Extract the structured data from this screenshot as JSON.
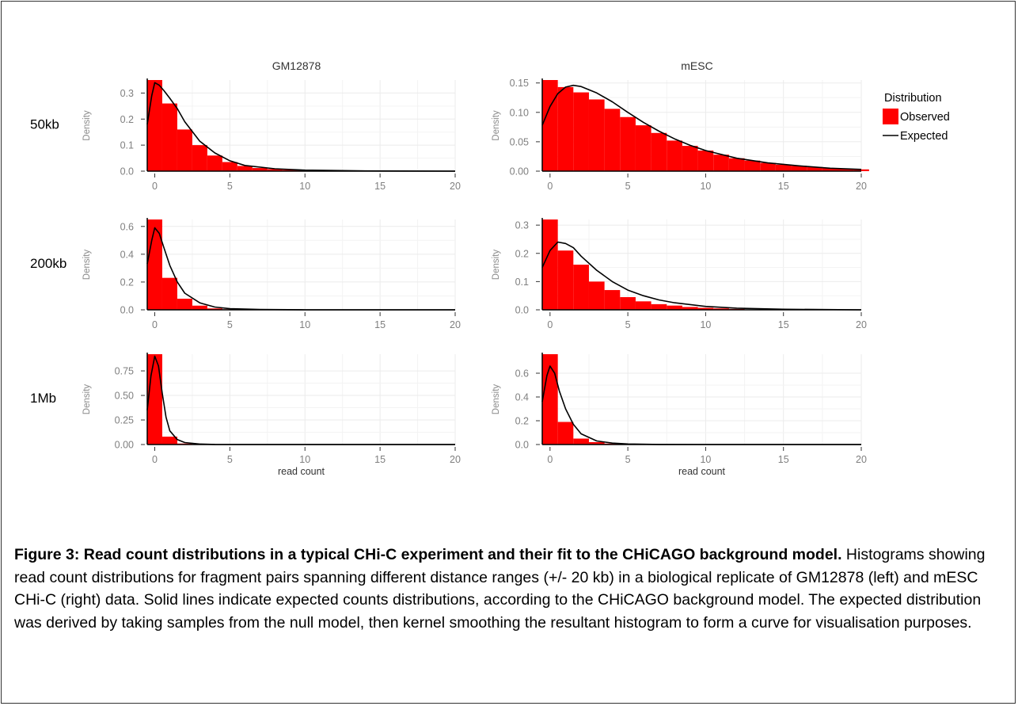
{
  "figure": {
    "caption_bold": "Figure 3: Read count distributions in a typical CHi-C experiment and their fit to the CHiCAGO background model.",
    "caption_rest": " Histograms showing read count distributions for fragment pairs spanning different distance ranges (+/- 20 kb) in a biological replicate of GM12878 (left) and mESC CHi-C (right) data. Solid lines indicate expected counts distributions, according to the CHiCAGO background model. The expected distribution was derived by taking samples from the null model, then kernel smoothing the resultant histogram to form a curve for visualisation purposes."
  },
  "colors": {
    "observed": "#ff0000",
    "expected": "#000000",
    "grid": "#ebebeb",
    "axis_text": "#7f7f7f"
  },
  "chart_data": [
    {
      "type": "bar",
      "panel": "GM12878 / 50kb",
      "column_label": "GM12878",
      "row_label": "50kb",
      "ylabel": "Density",
      "xlabel": "",
      "xlim": [
        -0.5,
        20
      ],
      "ylim": [
        0,
        0.35
      ],
      "xticks": [
        0,
        5,
        10,
        15,
        20
      ],
      "yticks": [
        0.0,
        0.1,
        0.2,
        0.3
      ],
      "ytick_labels": [
        "0.0",
        "0.1",
        "0.2",
        "0.3"
      ],
      "series": [
        {
          "name": "Observed",
          "type": "bar",
          "x": [
            0,
            1,
            2,
            3,
            4,
            5,
            6,
            7,
            8,
            9,
            10,
            11,
            12
          ],
          "values": [
            0.35,
            0.26,
            0.16,
            0.1,
            0.06,
            0.035,
            0.02,
            0.012,
            0.008,
            0.005,
            0.003,
            0.002,
            0.001
          ]
        },
        {
          "name": "Expected",
          "type": "line",
          "x": [
            -0.5,
            -0.2,
            0,
            0.3,
            0.6,
            1,
            1.5,
            2,
            3,
            4,
            5,
            6,
            8,
            10,
            14,
            20
          ],
          "values": [
            0.18,
            0.29,
            0.34,
            0.33,
            0.31,
            0.28,
            0.24,
            0.19,
            0.115,
            0.07,
            0.04,
            0.022,
            0.009,
            0.004,
            0.001,
            0.0
          ]
        }
      ]
    },
    {
      "type": "bar",
      "panel": "mESC / 50kb",
      "column_label": "mESC",
      "row_label": "50kb",
      "ylabel": "Density",
      "xlabel": "",
      "xlim": [
        -0.5,
        20
      ],
      "ylim": [
        0,
        0.155
      ],
      "xticks": [
        0,
        5,
        10,
        15,
        20
      ],
      "yticks": [
        0.0,
        0.05,
        0.1,
        0.15
      ],
      "ytick_labels": [
        "0.00",
        "0.05",
        "0.10",
        "0.15"
      ],
      "series": [
        {
          "name": "Observed",
          "type": "bar",
          "x": [
            0,
            1,
            2,
            3,
            4,
            5,
            6,
            7,
            8,
            9,
            10,
            11,
            12,
            13,
            14,
            15,
            16,
            17,
            18,
            19,
            20
          ],
          "values": [
            0.155,
            0.143,
            0.134,
            0.122,
            0.106,
            0.092,
            0.078,
            0.065,
            0.052,
            0.043,
            0.035,
            0.028,
            0.022,
            0.018,
            0.014,
            0.011,
            0.009,
            0.007,
            0.005,
            0.004,
            0.003
          ]
        },
        {
          "name": "Expected",
          "type": "line",
          "x": [
            -0.5,
            0,
            0.5,
            1,
            1.5,
            2,
            3,
            4,
            5,
            6,
            7,
            8,
            9,
            10,
            12,
            14,
            16,
            18,
            20
          ],
          "values": [
            0.078,
            0.11,
            0.132,
            0.143,
            0.146,
            0.144,
            0.133,
            0.118,
            0.1,
            0.083,
            0.068,
            0.055,
            0.044,
            0.035,
            0.022,
            0.014,
            0.009,
            0.005,
            0.003
          ]
        }
      ]
    },
    {
      "type": "bar",
      "panel": "GM12878 / 200kb",
      "column_label": "GM12878",
      "row_label": "200kb",
      "ylabel": "Density",
      "xlabel": "",
      "xlim": [
        -0.5,
        20
      ],
      "ylim": [
        0,
        0.65
      ],
      "xticks": [
        0,
        5,
        10,
        15,
        20
      ],
      "yticks": [
        0.0,
        0.2,
        0.4,
        0.6
      ],
      "ytick_labels": [
        "0.0",
        "0.2",
        "0.4",
        "0.6"
      ],
      "series": [
        {
          "name": "Observed",
          "type": "bar",
          "x": [
            0,
            1,
            2,
            3,
            4,
            5,
            6
          ],
          "values": [
            0.65,
            0.23,
            0.08,
            0.03,
            0.01,
            0.004,
            0.002
          ]
        },
        {
          "name": "Expected",
          "type": "line",
          "x": [
            -0.5,
            -0.2,
            0,
            0.3,
            0.6,
            1,
            1.5,
            2,
            3,
            4,
            5,
            7,
            10,
            20
          ],
          "values": [
            0.33,
            0.5,
            0.59,
            0.55,
            0.45,
            0.32,
            0.2,
            0.12,
            0.05,
            0.02,
            0.008,
            0.002,
            0.0,
            0.0
          ]
        }
      ]
    },
    {
      "type": "bar",
      "panel": "mESC / 200kb",
      "column_label": "mESC",
      "row_label": "200kb",
      "ylabel": "Density",
      "xlabel": "",
      "xlim": [
        -0.5,
        20
      ],
      "ylim": [
        0,
        0.32
      ],
      "xticks": [
        0,
        5,
        10,
        15,
        20
      ],
      "yticks": [
        0.0,
        0.1,
        0.2,
        0.3
      ],
      "ytick_labels": [
        "0.0",
        "0.1",
        "0.2",
        "0.3"
      ],
      "series": [
        {
          "name": "Observed",
          "type": "bar",
          "x": [
            0,
            1,
            2,
            3,
            4,
            5,
            6,
            7,
            8,
            9,
            10,
            11,
            12
          ],
          "values": [
            0.32,
            0.21,
            0.16,
            0.1,
            0.07,
            0.045,
            0.03,
            0.02,
            0.015,
            0.01,
            0.007,
            0.005,
            0.003
          ]
        },
        {
          "name": "Expected",
          "type": "line",
          "x": [
            -0.5,
            0,
            0.5,
            1,
            1.5,
            2,
            3,
            4,
            5,
            6,
            7,
            8,
            10,
            12,
            15,
            20
          ],
          "values": [
            0.15,
            0.21,
            0.24,
            0.235,
            0.22,
            0.19,
            0.14,
            0.1,
            0.07,
            0.05,
            0.035,
            0.025,
            0.012,
            0.006,
            0.002,
            0.0
          ]
        }
      ]
    },
    {
      "type": "bar",
      "panel": "GM12878 / 1Mb",
      "column_label": "GM12878",
      "row_label": "1Mb",
      "ylabel": "Density",
      "xlabel": "read count",
      "xlim": [
        -0.5,
        20
      ],
      "ylim": [
        0,
        0.92
      ],
      "xticks": [
        0,
        5,
        10,
        15,
        20
      ],
      "yticks": [
        0.0,
        0.25,
        0.5,
        0.75
      ],
      "ytick_labels": [
        "0.00",
        "0.25",
        "0.50",
        "0.75"
      ],
      "series": [
        {
          "name": "Observed",
          "type": "bar",
          "x": [
            0,
            1,
            2,
            3
          ],
          "values": [
            0.92,
            0.08,
            0.01,
            0.002
          ]
        },
        {
          "name": "Expected",
          "type": "line",
          "x": [
            -0.5,
            -0.25,
            0,
            0.25,
            0.5,
            0.75,
            1,
            1.5,
            2,
            3,
            4,
            6,
            10,
            20
          ],
          "values": [
            0.35,
            0.7,
            0.9,
            0.8,
            0.52,
            0.28,
            0.14,
            0.05,
            0.02,
            0.005,
            0.001,
            0.0,
            0.0,
            0.0
          ]
        }
      ]
    },
    {
      "type": "bar",
      "panel": "mESC / 1Mb",
      "column_label": "mESC",
      "row_label": "1Mb",
      "ylabel": "Density",
      "xlabel": "read count",
      "xlim": [
        -0.5,
        20
      ],
      "ylim": [
        0,
        0.76
      ],
      "xticks": [
        0,
        5,
        10,
        15,
        20
      ],
      "yticks": [
        0.0,
        0.2,
        0.4,
        0.6
      ],
      "ytick_labels": [
        "0.0",
        "0.2",
        "0.4",
        "0.6"
      ],
      "series": [
        {
          "name": "Observed",
          "type": "bar",
          "x": [
            0,
            1,
            2,
            3,
            4,
            5,
            6,
            7
          ],
          "values": [
            0.76,
            0.19,
            0.05,
            0.02,
            0.008,
            0.005,
            0.003,
            0.002
          ]
        },
        {
          "name": "Expected",
          "type": "line",
          "x": [
            -0.5,
            -0.2,
            0,
            0.3,
            0.6,
            1,
            1.5,
            2,
            3,
            4,
            5,
            7,
            10,
            20
          ],
          "values": [
            0.36,
            0.58,
            0.66,
            0.6,
            0.45,
            0.3,
            0.17,
            0.09,
            0.03,
            0.012,
            0.005,
            0.001,
            0.0,
            0.0
          ]
        }
      ]
    }
  ],
  "legend": {
    "title": "Distribution",
    "items": [
      {
        "label": "Observed",
        "kind": "fill"
      },
      {
        "label": "Expected",
        "kind": "line"
      }
    ],
    "placement": "right"
  }
}
